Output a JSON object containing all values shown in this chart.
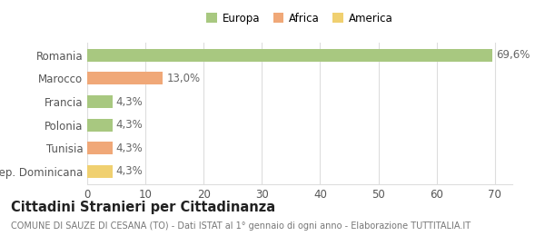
{
  "categories": [
    "Rep. Dominicana",
    "Tunisia",
    "Polonia",
    "Francia",
    "Marocco",
    "Romania"
  ],
  "values": [
    4.3,
    4.3,
    4.3,
    4.3,
    13.0,
    69.6
  ],
  "labels": [
    "4,3%",
    "4,3%",
    "4,3%",
    "4,3%",
    "13,0%",
    "69,6%"
  ],
  "colors": [
    "#f0d070",
    "#f0a878",
    "#a8c880",
    "#a8c880",
    "#f0a878",
    "#a8c880"
  ],
  "legend": [
    {
      "label": "Europa",
      "color": "#a8c880"
    },
    {
      "label": "Africa",
      "color": "#f0a878"
    },
    {
      "label": "America",
      "color": "#f0d070"
    }
  ],
  "xlim": [
    0,
    73
  ],
  "xticks": [
    0,
    10,
    20,
    30,
    40,
    50,
    60,
    70
  ],
  "title": "Cittadini Stranieri per Cittadinanza",
  "subtitle": "COMUNE DI SAUZE DI CESANA (TO) - Dati ISTAT al 1° gennaio di ogni anno - Elaborazione TUTTITALIA.IT",
  "background_color": "#ffffff",
  "grid_color": "#dddddd",
  "bar_height": 0.55,
  "label_fontsize": 8.5,
  "tick_fontsize": 8.5,
  "title_fontsize": 10.5,
  "subtitle_fontsize": 7.0
}
